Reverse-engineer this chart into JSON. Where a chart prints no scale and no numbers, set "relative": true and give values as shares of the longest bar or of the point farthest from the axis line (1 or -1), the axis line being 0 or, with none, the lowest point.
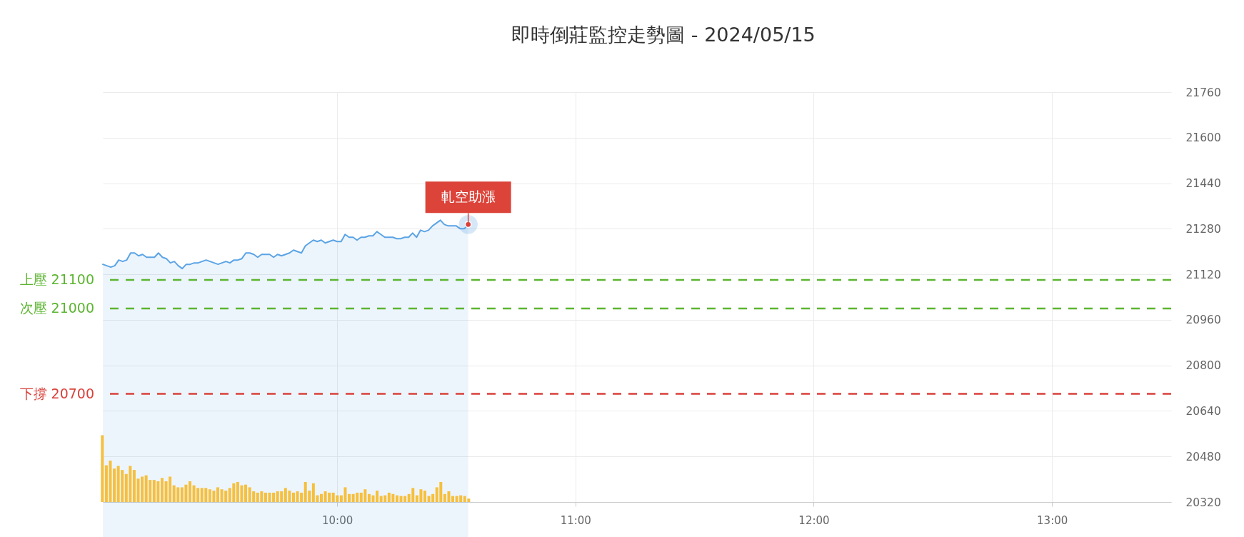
{
  "chart_data": [
    {
      "type": "area",
      "title": "即時倒莊監控走勢圖 - 2024/05/15",
      "x": [
        "2024-05-15T09:01",
        "2024-05-15T09:02",
        "2024-05-15T09:03",
        "2024-05-15T09:04",
        "2024-05-15T09:05",
        "2024-05-15T09:06",
        "2024-05-15T09:07",
        "2024-05-15T09:08",
        "2024-05-15T09:09",
        "2024-05-15T09:10",
        "2024-05-15T09:11",
        "2024-05-15T09:12",
        "2024-05-15T09:13",
        "2024-05-15T09:14",
        "2024-05-15T09:15",
        "2024-05-15T09:16",
        "2024-05-15T09:17",
        "2024-05-15T09:18",
        "2024-05-15T09:19",
        "2024-05-15T09:20",
        "2024-05-15T09:21",
        "2024-05-15T09:22",
        "2024-05-15T09:23",
        "2024-05-15T09:24",
        "2024-05-15T09:25",
        "2024-05-15T09:26",
        "2024-05-15T09:27",
        "2024-05-15T09:28",
        "2024-05-15T09:29",
        "2024-05-15T09:30",
        "2024-05-15T09:31",
        "2024-05-15T09:32",
        "2024-05-15T09:33",
        "2024-05-15T09:34",
        "2024-05-15T09:35",
        "2024-05-15T09:36",
        "2024-05-15T09:37",
        "2024-05-15T09:38",
        "2024-05-15T09:39",
        "2024-05-15T09:40",
        "2024-05-15T09:41",
        "2024-05-15T09:42",
        "2024-05-15T09:43",
        "2024-05-15T09:44",
        "2024-05-15T09:45",
        "2024-05-15T09:46",
        "2024-05-15T09:47",
        "2024-05-15T09:48",
        "2024-05-15T09:49",
        "2024-05-15T09:50",
        "2024-05-15T09:51",
        "2024-05-15T09:52",
        "2024-05-15T09:53",
        "2024-05-15T09:54",
        "2024-05-15T09:55",
        "2024-05-15T09:56",
        "2024-05-15T09:57",
        "2024-05-15T09:58",
        "2024-05-15T09:59",
        "2024-05-15T10:00",
        "2024-05-15T10:01",
        "2024-05-15T10:02",
        "2024-05-15T10:03",
        "2024-05-15T10:04",
        "2024-05-15T10:05",
        "2024-05-15T10:06",
        "2024-05-15T10:07",
        "2024-05-15T10:08",
        "2024-05-15T10:09",
        "2024-05-15T10:10",
        "2024-05-15T10:11",
        "2024-05-15T10:12",
        "2024-05-15T10:13",
        "2024-05-15T10:14",
        "2024-05-15T10:15",
        "2024-05-15T10:16",
        "2024-05-15T10:17",
        "2024-05-15T10:18",
        "2024-05-15T10:19",
        "2024-05-15T10:20",
        "2024-05-15T10:21",
        "2024-05-15T10:22",
        "2024-05-15T10:23",
        "2024-05-15T10:24",
        "2024-05-15T10:25",
        "2024-05-15T10:26",
        "2024-05-15T10:27",
        "2024-05-15T10:28",
        "2024-05-15T10:29",
        "2024-05-15T10:30",
        "2024-05-15T10:31",
        "2024-05-15T10:32",
        "2024-05-15T10:33"
      ],
      "series": [
        {
          "color": "#5ba4e5",
          "values": [
            21155,
            21150,
            21145,
            21150,
            21170,
            21165,
            21170,
            21195,
            21195,
            21185,
            21190,
            21180,
            21180,
            21180,
            21195,
            21180,
            21175,
            21160,
            21165,
            21150,
            21140,
            21155,
            21155,
            21160,
            21160,
            21165,
            21170,
            21165,
            21160,
            21155,
            21160,
            21165,
            21160,
            21170,
            21170,
            21175,
            21195,
            21195,
            21190,
            21180,
            21190,
            21190,
            21190,
            21180,
            21190,
            21185,
            21190,
            21195,
            21205,
            21200,
            21195,
            21220,
            21230,
            21240,
            21235,
            21240,
            21230,
            21235,
            21240,
            21235,
            21235,
            21260,
            21250,
            21250,
            21240,
            21250,
            21250,
            21255,
            21255,
            21270,
            21260,
            21250,
            21250,
            21250,
            21245,
            21245,
            21250,
            21250,
            21265,
            21250,
            21275,
            21270,
            21275,
            21290,
            21300,
            21310,
            21295,
            21290,
            21290,
            21290,
            21280,
            21280,
            21295
          ]
        }
      ],
      "xlim": [
        "2024-05-15T09:01",
        "2024-05-15T13:30"
      ],
      "xticks": [
        {
          "value": "2024-05-15T10:00",
          "label": "10:00"
        },
        {
          "value": "2024-05-15T11:00",
          "label": "11:00"
        },
        {
          "value": "2024-05-15T12:00",
          "label": "12:00"
        },
        {
          "value": "2024-05-15T13:00",
          "label": "13:00"
        }
      ],
      "ylim": [
        20320,
        21760
      ],
      "yticks": [
        20320,
        20480,
        20640,
        20800,
        20960,
        21120,
        21280,
        21440,
        21600,
        21760
      ],
      "grid": true,
      "ref_lines": [
        {
          "axis": "y",
          "value": 21100,
          "label": "上壓 21100",
          "color": "#5cb531",
          "line_style": "dashed"
        },
        {
          "axis": "y",
          "value": 21000,
          "label": "次壓 21000",
          "color": "#5cb531",
          "line_style": "dashed"
        },
        {
          "axis": "y",
          "value": 20700,
          "label": "下撐 20700",
          "color": "#d9403a",
          "line_style": "dashed"
        }
      ],
      "annotations": [
        {
          "text": "軋空助漲",
          "x": "2024-05-15T10:33",
          "y": 21295
        }
      ]
    },
    {
      "type": "bar",
      "relative": true,
      "categories": [
        null,
        null,
        null,
        null,
        null,
        null,
        null,
        null,
        null,
        null,
        null,
        null,
        null,
        null,
        null,
        null,
        null,
        null,
        null,
        null,
        null,
        null,
        null,
        null,
        null,
        null,
        null,
        null,
        null,
        null,
        null,
        null,
        null,
        null,
        null,
        null,
        null,
        null,
        null,
        null,
        null,
        null,
        null,
        null,
        null,
        null,
        null,
        null,
        null,
        null,
        null,
        null,
        null,
        null,
        null,
        null,
        null,
        null,
        null,
        null,
        null,
        null,
        null,
        null,
        null,
        null,
        null,
        null,
        null,
        null,
        null,
        null,
        null,
        null,
        null,
        null,
        null,
        null,
        null,
        null,
        null,
        null,
        null,
        null,
        null,
        null,
        null,
        null,
        null,
        null,
        null,
        null,
        null
      ],
      "series": [
        {
          "color": "#f6bf3d",
          "values": [
            1.0,
            0.55,
            0.62,
            0.5,
            0.54,
            0.48,
            0.42,
            0.54,
            0.48,
            0.35,
            0.38,
            0.4,
            0.33,
            0.33,
            0.31,
            0.36,
            0.31,
            0.38,
            0.25,
            0.22,
            0.22,
            0.26,
            0.31,
            0.25,
            0.21,
            0.21,
            0.21,
            0.19,
            0.17,
            0.22,
            0.19,
            0.17,
            0.21,
            0.28,
            0.3,
            0.25,
            0.26,
            0.22,
            0.16,
            0.14,
            0.16,
            0.14,
            0.14,
            0.14,
            0.16,
            0.16,
            0.21,
            0.17,
            0.14,
            0.16,
            0.14,
            0.3,
            0.17,
            0.28,
            0.1,
            0.12,
            0.16,
            0.14,
            0.14,
            0.1,
            0.1,
            0.22,
            0.12,
            0.12,
            0.14,
            0.14,
            0.19,
            0.12,
            0.1,
            0.17,
            0.09,
            0.1,
            0.14,
            0.12,
            0.1,
            0.09,
            0.09,
            0.12,
            0.21,
            0.1,
            0.19,
            0.17,
            0.09,
            0.12,
            0.22,
            0.3,
            0.12,
            0.16,
            0.09,
            0.09,
            0.1,
            0.09,
            0.05
          ]
        }
      ]
    }
  ]
}
